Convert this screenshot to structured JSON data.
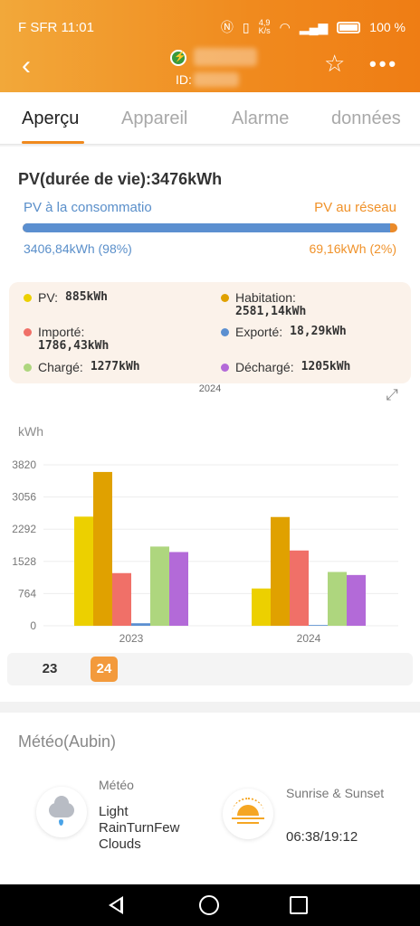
{
  "status_bar": {
    "carrier_time": "F SFR 11:01",
    "speed_value": "4,9",
    "speed_unit": "K/s",
    "battery": "100 %"
  },
  "header": {
    "plant_id_label": "ID:",
    "icons": {
      "back": "back-arrow-icon",
      "favorite": "star-icon",
      "more": "more-dots-icon"
    }
  },
  "tabs": [
    {
      "label": "Aperçu",
      "active": true
    },
    {
      "label": "Appareil",
      "active": false
    },
    {
      "label": "Alarme",
      "active": false
    },
    {
      "label": "données",
      "active": false
    }
  ],
  "summary": {
    "title": "PV(durée de vie):3476kWh",
    "consumption_label": "PV à la consommatio",
    "grid_label": "PV au réseau",
    "consumption_value": "3406,84kWh (98%)",
    "grid_value": "69,16kWh (2%)",
    "consumption_fraction": 0.98
  },
  "legend": {
    "pv": {
      "label": "PV:",
      "value": "885kWh",
      "color": "#ecd000"
    },
    "habitation": {
      "label": "Habitation:",
      "value": "2581,14kWh",
      "color": "#e0a100"
    },
    "importe": {
      "label": "Importé:",
      "value": "1786,43kWh",
      "color": "#f07068"
    },
    "exporte": {
      "label": "Exporté:",
      "value": "18,29kWh",
      "color": "#5b8fd0"
    },
    "charge": {
      "label": "Chargé:",
      "value": "1277kWh",
      "color": "#aed67e"
    },
    "decharge": {
      "label": "Déchargé:",
      "value": "1205kWh",
      "color": "#b36ad8"
    },
    "year": "2024"
  },
  "chart_data": {
    "type": "bar",
    "ylabel": "kWh",
    "yticks": [
      "0",
      "764",
      "1528",
      "2292",
      "3056",
      "3820"
    ],
    "ylim": [
      0,
      3820
    ],
    "categories": [
      "2023",
      "2024"
    ],
    "series": [
      {
        "name": "PV",
        "color": "#ecd000",
        "values": [
          2590,
          885
        ]
      },
      {
        "name": "Habitation",
        "color": "#e0a100",
        "values": [
          3650,
          2581.14
        ]
      },
      {
        "name": "Importé",
        "color": "#f07068",
        "values": [
          1250,
          1786.43
        ]
      },
      {
        "name": "Exporté",
        "color": "#5b8fd0",
        "values": [
          60,
          18.29
        ]
      },
      {
        "name": "Chargé",
        "color": "#aed67e",
        "values": [
          1880,
          1277
        ]
      },
      {
        "name": "Déchargé",
        "color": "#b36ad8",
        "values": [
          1750,
          1205
        ]
      }
    ],
    "grid": true
  },
  "year_selector": [
    {
      "label": "23",
      "active": false
    },
    {
      "label": "24",
      "active": true
    }
  ],
  "meteo": {
    "title": "Météo(Aubin)",
    "weather_label": "Météo",
    "weather_value": "Light RainTurnFew Clouds",
    "weather_icon": "cloud-rain-icon",
    "sun_label": "Sunrise & Sunset",
    "sun_value": "06:38/19:12",
    "sun_icon": "sunrise-icon"
  }
}
